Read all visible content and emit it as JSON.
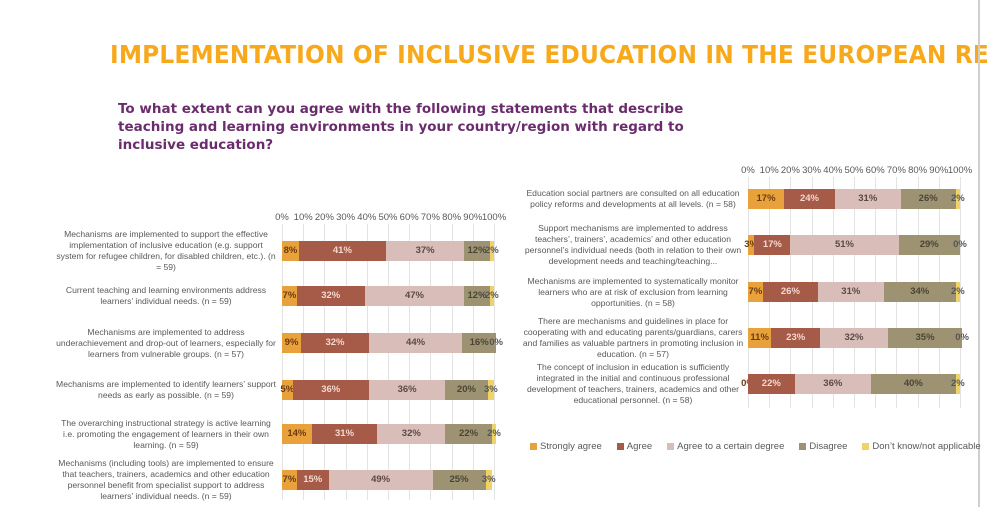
{
  "title": "IMPLEMENTATION OF INCLUSIVE EDUCATION IN THE EUROPEAN REGION",
  "question": "To what extent can you agree with the following statements that describe teaching and learning environments in your country/region with regard to inclusive education?",
  "colors": {
    "Strongly agree": "#e9a23b",
    "Agree": "#a65a48",
    "Agree  to a certain degree": "#d8bdb8",
    "Disagree": "#9d9373",
    "Don’t know/not applicable": "#f0d366"
  },
  "chart_data": [
    {
      "type": "bar",
      "orientation": "horizontal",
      "stacked": true,
      "xlim": [
        0,
        100
      ],
      "ticks": [
        "0%",
        "10%",
        "20%",
        "30%",
        "40%",
        "50%",
        "60%",
        "70%",
        "80%",
        "90%",
        "100%"
      ],
      "categories": [
        "Mechanisms are implemented to support the effective implementation of inclusive education (e.g. support system for refugee children, for disabled children, etc.). (n = 59)",
        "Current teaching and learning environments address learners’ individual needs. (n = 59)",
        "Mechanisms are implemented to address underachievement and drop-out of learners, especially for learners from vulnerable groups. (n = 57)",
        "Mechanisms are implemented to identify learners’ support needs as early as possible. (n = 59)",
        "The overarching instructional strategy is active learning i.e. promoting the engagement of learners in their own learning. (n = 59)",
        "Mechanisms (including tools) are implemented to ensure that teachers, trainers, academics and other education personnel benefit from specialist support to address learners’ individual needs. (n = 59)"
      ],
      "series": [
        {
          "name": "Strongly agree",
          "values": [
            8,
            7,
            9,
            5,
            14,
            7
          ]
        },
        {
          "name": "Agree",
          "values": [
            41,
            32,
            32,
            36,
            31,
            15
          ]
        },
        {
          "name": "Agree  to a certain degree",
          "values": [
            37,
            47,
            44,
            36,
            32,
            49
          ]
        },
        {
          "name": "Disagree",
          "values": [
            12,
            12,
            16,
            20,
            22,
            25
          ]
        },
        {
          "name": "Don’t know/not applicable",
          "values": [
            2,
            2,
            0,
            3,
            2,
            3
          ]
        }
      ]
    },
    {
      "type": "bar",
      "orientation": "horizontal",
      "stacked": true,
      "xlim": [
        0,
        100
      ],
      "ticks": [
        "0%",
        "10%",
        "20%",
        "30%",
        "40%",
        "50%",
        "60%",
        "70%",
        "80%",
        "90%",
        "100%"
      ],
      "categories": [
        "Education social partners are consulted on all education policy reforms and developments at all levels. (n = 58)",
        "Support mechanisms are implemented to address teachers’, trainers’, academics’ and other education personnel’s individual needs (both in relation to their own development needs and teaching/teaching...",
        "Mechanisms are implemented to systematically monitor learners who are at risk of exclusion from learning opportunities. (n = 58)",
        "There are mechanisms and guidelines in place for cooperating with and educating parents/guardians, carers and families as valuable partners in promoting inclusion in education. (n = 57)",
        "The concept of inclusion in education is sufficiently integrated in the initial and continuous professional development of teachers, trainers, academics and other educational personnel.  (n = 58)"
      ],
      "series": [
        {
          "name": "Strongly agree",
          "values": [
            17,
            3,
            7,
            11,
            0
          ]
        },
        {
          "name": "Agree",
          "values": [
            24,
            17,
            26,
            23,
            22
          ]
        },
        {
          "name": "Agree  to a certain degree",
          "values": [
            31,
            51,
            31,
            32,
            36
          ]
        },
        {
          "name": "Disagree",
          "values": [
            26,
            29,
            34,
            35,
            40
          ]
        },
        {
          "name": "Don’t know/not applicable",
          "values": [
            2,
            0,
            2,
            0,
            2
          ]
        }
      ],
      "legend": {
        "position": "bottom",
        "entries": [
          "Strongly agree",
          "Agree",
          "Agree  to a certain degree",
          "Disagree",
          "Don’t know/not applicable"
        ]
      }
    }
  ]
}
